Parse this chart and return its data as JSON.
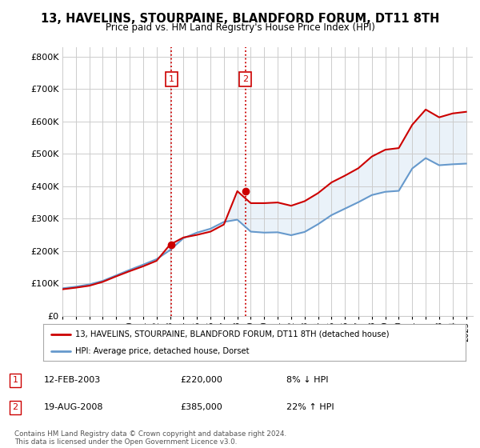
{
  "title": "13, HAVELINS, STOURPAINE, BLANDFORD FORUM, DT11 8TH",
  "subtitle": "Price paid vs. HM Land Registry's House Price Index (HPI)",
  "legend_line1": "13, HAVELINS, STOURPAINE, BLANDFORD FORUM, DT11 8TH (detached house)",
  "legend_line2": "HPI: Average price, detached house, Dorset",
  "annotation1_date": "12-FEB-2003",
  "annotation1_price": "£220,000",
  "annotation1_hpi": "8% ↓ HPI",
  "annotation2_date": "19-AUG-2008",
  "annotation2_price": "£385,000",
  "annotation2_hpi": "22% ↑ HPI",
  "footer": "Contains HM Land Registry data © Crown copyright and database right 2024.\nThis data is licensed under the Open Government Licence v3.0.",
  "property_color": "#cc0000",
  "hpi_color": "#6699cc",
  "vline_color": "#cc0000",
  "purchase1_x": 2003.1,
  "purchase1_y": 220000,
  "purchase2_x": 2008.6,
  "purchase2_y": 385000,
  "ylim": [
    0,
    830000
  ],
  "xlim": [
    1995,
    2025.5
  ],
  "yticks": [
    0,
    100000,
    200000,
    300000,
    400000,
    500000,
    600000,
    700000,
    800000
  ],
  "ytick_labels": [
    "£0",
    "£100K",
    "£200K",
    "£300K",
    "£400K",
    "£500K",
    "£600K",
    "£700K",
    "£800K"
  ],
  "xticks": [
    1995,
    1996,
    1997,
    1998,
    1999,
    2000,
    2001,
    2002,
    2003,
    2004,
    2005,
    2006,
    2007,
    2008,
    2009,
    2010,
    2011,
    2012,
    2013,
    2014,
    2015,
    2016,
    2017,
    2018,
    2019,
    2020,
    2021,
    2022,
    2023,
    2024,
    2025
  ],
  "hpi_years": [
    1995,
    1996,
    1997,
    1998,
    1999,
    2000,
    2001,
    2002,
    2003,
    2004,
    2005,
    2006,
    2007,
    2008,
    2009,
    2010,
    2011,
    2012,
    2013,
    2014,
    2015,
    2016,
    2017,
    2018,
    2019,
    2020,
    2021,
    2022,
    2023,
    2024,
    2025
  ],
  "hpi_values": [
    85000,
    90000,
    97000,
    108000,
    125000,
    142000,
    158000,
    175000,
    203000,
    240000,
    257000,
    269000,
    290000,
    297000,
    260000,
    257000,
    258000,
    249000,
    259000,
    283000,
    311000,
    331000,
    351000,
    373000,
    383000,
    386000,
    455000,
    487000,
    465000,
    468000,
    470000
  ],
  "prop_years": [
    1995,
    1996,
    1997,
    1998,
    1999,
    2000,
    2001,
    2002,
    2003,
    2004,
    2005,
    2006,
    2007,
    2008,
    2009,
    2010,
    2011,
    2012,
    2013,
    2014,
    2015,
    2016,
    2017,
    2018,
    2019,
    2020,
    2021,
    2022,
    2023,
    2024,
    2025
  ],
  "prop_values": [
    82000,
    87000,
    93000,
    105000,
    122000,
    138000,
    153000,
    170000,
    220000,
    242000,
    250000,
    260000,
    282000,
    385000,
    348000,
    348000,
    350000,
    340000,
    354000,
    379000,
    412000,
    433000,
    456000,
    492000,
    513000,
    518000,
    590000,
    637000,
    613000,
    625000,
    630000
  ],
  "shaded_region_color": "#cce0f0",
  "shaded_alpha": 0.4
}
